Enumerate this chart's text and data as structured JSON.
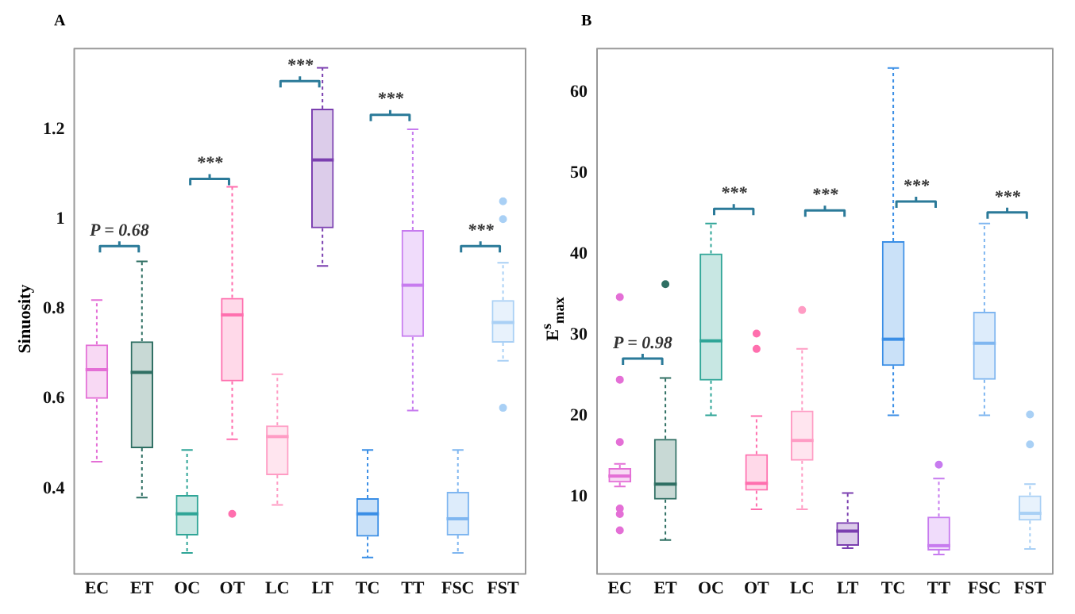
{
  "chart_data": [
    {
      "type": "box",
      "title": "A",
      "ylabel": "Sinuosity",
      "categories": [
        "EC",
        "ET",
        "OC",
        "OT",
        "LC",
        "LT",
        "TC",
        "TT",
        "FSC",
        "FST"
      ],
      "colors": [
        "#e46fd6",
        "#2f6f63",
        "#2fa597",
        "#ff6fae",
        "#ff9cc4",
        "#7b3fb0",
        "#3a8ee6",
        "#c77bef",
        "#7fb6f0",
        "#a9d0f5"
      ],
      "boxes": [
        {
          "low": 0.46,
          "q1": 0.6,
          "median": 0.665,
          "q3": 0.721,
          "high": 0.82
        },
        {
          "low": 0.38,
          "q1": 0.49,
          "median": 0.659,
          "q3": 0.728,
          "high": 0.906
        },
        {
          "low": 0.257,
          "q1": 0.296,
          "median": 0.344,
          "q3": 0.386,
          "high": 0.486
        },
        {
          "low": 0.51,
          "q1": 0.639,
          "median": 0.787,
          "q3": 0.825,
          "high": 1.072,
          "outliers": [
            0.344
          ]
        },
        {
          "low": 0.364,
          "q1": 0.43,
          "median": 0.516,
          "q3": 0.541,
          "high": 0.655
        },
        {
          "low": 0.896,
          "q1": 0.98,
          "median": 1.132,
          "q3": 1.246,
          "high": 1.337
        },
        {
          "low": 0.247,
          "q1": 0.293,
          "median": 0.344,
          "q3": 0.379,
          "high": 0.486
        },
        {
          "low": 0.574,
          "q1": 0.738,
          "median": 0.853,
          "q3": 0.976,
          "high": 1.2
        },
        {
          "low": 0.257,
          "q1": 0.296,
          "median": 0.333,
          "q3": 0.393,
          "high": 0.486
        },
        {
          "low": 0.685,
          "q1": 0.725,
          "median": 0.77,
          "q3": 0.82,
          "high": 0.903,
          "outliers": [
            1.0,
            1.04,
            0.58
          ]
        }
      ],
      "ylim": [
        0.21,
        1.38
      ],
      "yticks": [
        0.4,
        0.6,
        0.8,
        1.0,
        1.2
      ],
      "annotations": [
        "P = 0.68",
        "***",
        "***",
        "***",
        "***"
      ]
    },
    {
      "type": "box",
      "title": "B",
      "ylabel": "E$^{s}$$_{max}$",
      "categories": [
        "EC",
        "ET",
        "OC",
        "OT",
        "LC",
        "LT",
        "TC",
        "TT",
        "FSC",
        "FST"
      ],
      "colors": [
        "#e46fd6",
        "#2f6f63",
        "#2fa597",
        "#ff6fae",
        "#ff9cc4",
        "#7b3fb0",
        "#3a8ee6",
        "#c77bef",
        "#7fb6f0",
        "#a9d0f5"
      ],
      "boxes": [
        {
          "low": 11.3,
          "q1": 11.8,
          "median": 12.6,
          "q3": 13.6,
          "high": 14.1,
          "outliers": [
            24.5,
            34.7,
            16.8,
            8.6,
            7.9,
            5.9
          ]
        },
        {
          "low": 4.7,
          "q1": 9.7,
          "median": 11.6,
          "q3": 17.2,
          "high": 24.7,
          "outliers": [
            36.3
          ]
        },
        {
          "low": 20.1,
          "q1": 24.4,
          "median": 29.3,
          "q3": 40.1,
          "high": 43.8
        },
        {
          "low": 8.5,
          "q1": 10.8,
          "median": 11.7,
          "q3": 15.3,
          "high": 20.0,
          "outliers": [
            30.2,
            28.3
          ]
        },
        {
          "low": 8.5,
          "q1": 14.5,
          "median": 17.0,
          "q3": 20.7,
          "high": 28.3,
          "outliers": [
            33.1
          ]
        },
        {
          "low": 3.7,
          "q1": 4.0,
          "median": 5.8,
          "q3": 6.9,
          "high": 10.5
        },
        {
          "low": 20.1,
          "q1": 26.2,
          "median": 29.5,
          "q3": 41.6,
          "high": 63.0
        },
        {
          "low": 2.9,
          "q1": 3.4,
          "median": 4.0,
          "q3": 7.6,
          "high": 12.3,
          "outliers": [
            14.0
          ]
        },
        {
          "low": 20.1,
          "q1": 24.5,
          "median": 29.0,
          "q3": 32.9,
          "high": 43.8
        },
        {
          "low": 3.6,
          "q1": 7.1,
          "median": 8.0,
          "q3": 10.2,
          "high": 11.6,
          "outliers": [
            20.2,
            16.5
          ]
        }
      ],
      "ylim": [
        0.5,
        65.4
      ],
      "yticks": [
        10,
        20,
        30,
        40,
        50,
        60
      ],
      "annotations": [
        "P = 0.98",
        "***",
        "***",
        "***",
        "***"
      ]
    }
  ]
}
